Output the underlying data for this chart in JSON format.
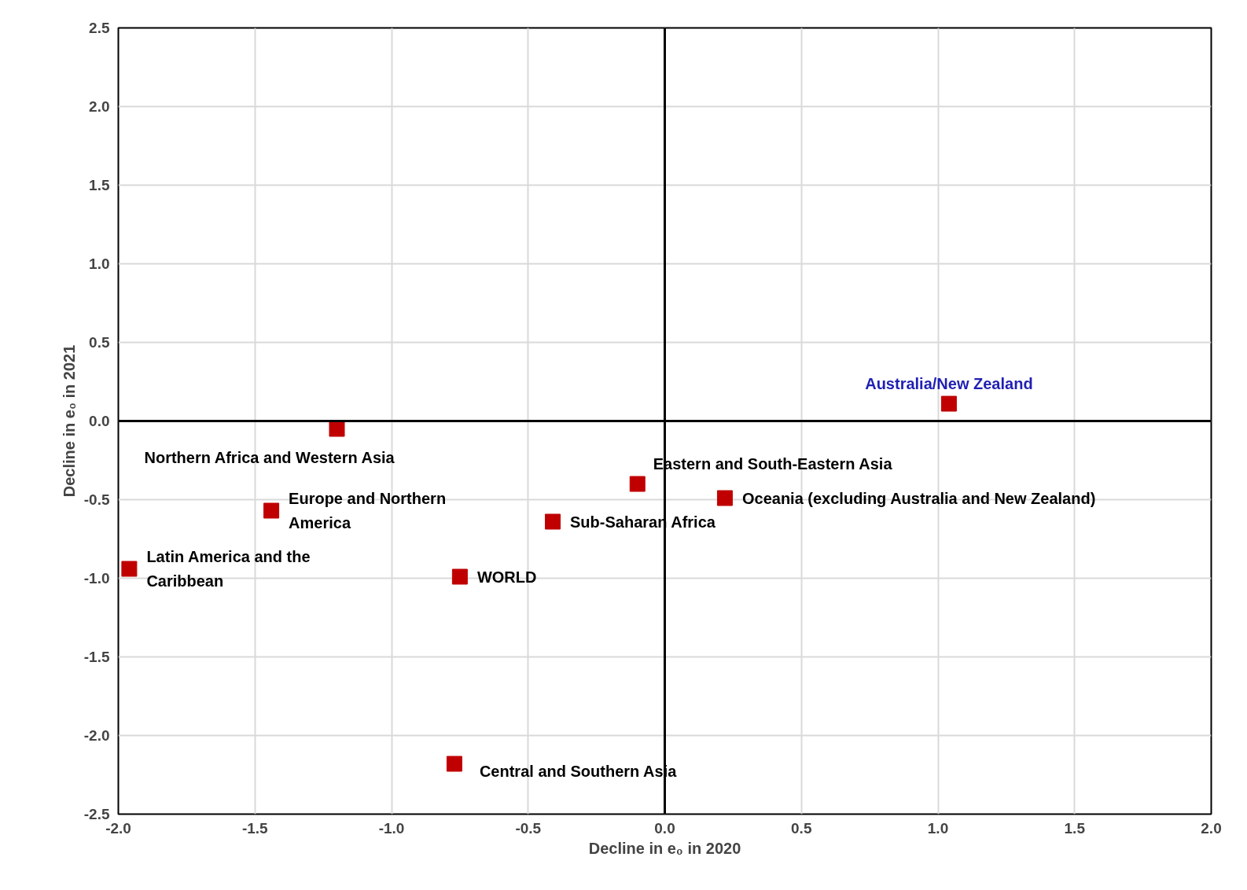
{
  "chart_data": {
    "type": "scatter",
    "xlabel": "Decline in e₀ in 2020",
    "ylabel": "Decline in e₀ in 2021",
    "x": [
      1.04,
      -1.2,
      -1.44,
      -1.96,
      -0.75,
      -0.41,
      -0.1,
      0.22,
      -0.77
    ],
    "values": [
      0.11,
      -0.05,
      -0.57,
      -0.94,
      -0.99,
      -0.64,
      -0.4,
      -0.49,
      -2.18
    ],
    "color": "#c00000",
    "marker": "square",
    "xlim": [
      -2.0,
      2.0
    ],
    "xticks": [
      {
        "value": -2.0,
        "label": "-2.0"
      },
      {
        "value": -1.5,
        "label": "-1.5"
      },
      {
        "value": -1.0,
        "label": "-1.0"
      },
      {
        "value": -0.5,
        "label": "-0.5"
      },
      {
        "value": 0.0,
        "label": "0.0"
      },
      {
        "value": 0.5,
        "label": "0.5"
      },
      {
        "value": 1.0,
        "label": "1.0"
      },
      {
        "value": 1.5,
        "label": "1.5"
      },
      {
        "value": 2.0,
        "label": "2.0"
      }
    ],
    "ylim": [
      -2.5,
      2.5
    ],
    "yticks": [
      {
        "value": -2.5,
        "label": "-2.5"
      },
      {
        "value": -2.0,
        "label": "-2.0"
      },
      {
        "value": -1.5,
        "label": "-1.5"
      },
      {
        "value": -1.0,
        "label": "-1.0"
      },
      {
        "value": -0.5,
        "label": "-0.5"
      },
      {
        "value": 0.0,
        "label": "0.0"
      },
      {
        "value": 0.5,
        "label": "0.5"
      },
      {
        "value": 1.0,
        "label": "1.0"
      },
      {
        "value": 1.5,
        "label": "1.5"
      },
      {
        "value": 2.0,
        "label": "2.0"
      },
      {
        "value": 2.5,
        "label": "2.5"
      }
    ],
    "grid": true,
    "annotations": [
      {
        "text": "Australia/New Zealand",
        "x": 1.04,
        "y": 0.11
      },
      {
        "text": "Northern Africa and Western Asia",
        "x": -1.2,
        "y": -0.05
      },
      {
        "text": "Europe and Northern\nAmerica",
        "x": -1.44,
        "y": -0.57
      },
      {
        "text": "Latin America and the\nCaribbean",
        "x": -1.96,
        "y": -0.94
      },
      {
        "text": "WORLD",
        "x": -0.75,
        "y": -0.99
      },
      {
        "text": "Sub-Saharan Africa",
        "x": -0.41,
        "y": -0.64
      },
      {
        "text": "Eastern and South-Eastern Asia",
        "x": -0.1,
        "y": -0.4
      },
      {
        "text": "Oceania (excluding Australia and New Zealand)",
        "x": 0.22,
        "y": -0.49
      },
      {
        "text": "Central and Southern Asia",
        "x": -0.77,
        "y": -2.18
      }
    ]
  }
}
